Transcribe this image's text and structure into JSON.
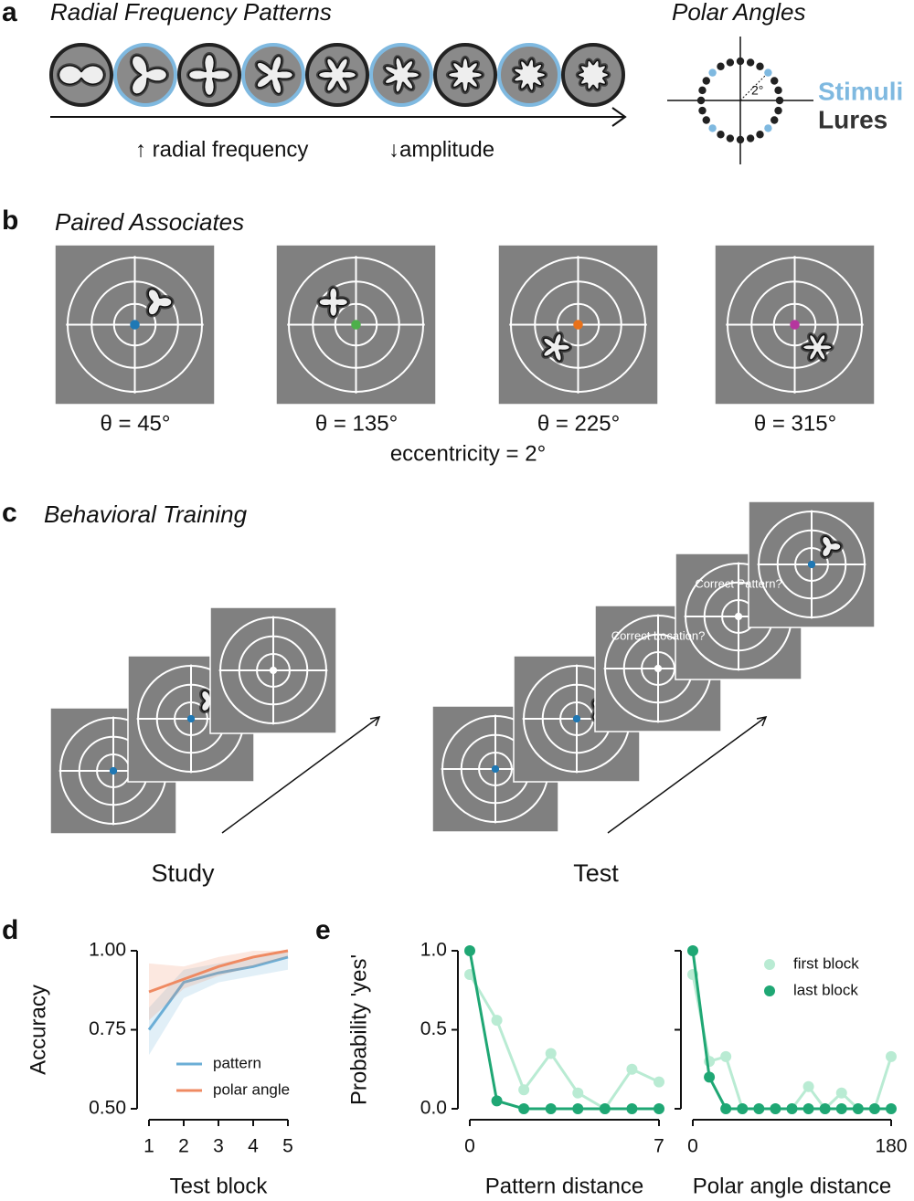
{
  "panel_labels": [
    "a",
    "b",
    "c",
    "d",
    "e"
  ],
  "a": {
    "title": "Radial Frequency Patterns",
    "axis_labels": [
      "↑ radial frequency",
      "↓amplitude"
    ],
    "polar_title": "Polar Angles",
    "polar_scale": "2°",
    "legend": [
      "Stimuli",
      "Lures"
    ]
  },
  "b": {
    "title": "Paired Associates",
    "labels": [
      "θ = 45°",
      "θ = 135°",
      "θ = 225°",
      "θ = 315°"
    ],
    "caption": "eccentricity = 2°"
  },
  "c": {
    "title": "Behavioral Training",
    "prompts": [
      "Correct Location?",
      "Correct Pattern?"
    ],
    "phases": [
      "Study",
      "Test"
    ]
  },
  "chart_data": [
    {
      "type": "line",
      "xlabel": "Test block",
      "ylabel": "Accuracy",
      "x": [
        1,
        2,
        3,
        4,
        5
      ],
      "xlim": [
        1,
        5
      ],
      "xticks": [
        1,
        2,
        3,
        4,
        5
      ],
      "ylim": [
        0.5,
        1.0
      ],
      "yticks": [
        {
          "value": 0.5,
          "label": "0.50"
        },
        {
          "value": 0.75,
          "label": "0.75"
        },
        {
          "value": 1.0,
          "label": "1.00"
        }
      ],
      "legend": "lower right",
      "series": [
        {
          "name": "pattern",
          "color": "#6baed6",
          "values": [
            0.75,
            0.9,
            0.93,
            0.95,
            0.98
          ],
          "lower": [
            0.67,
            0.85,
            0.9,
            0.92,
            0.94
          ],
          "upper": [
            0.82,
            0.94,
            0.96,
            0.98,
            1.0
          ]
        },
        {
          "name": "polar angle",
          "color": "#ef8a62",
          "values": [
            0.87,
            0.91,
            0.95,
            0.98,
            1.0
          ],
          "lower": [
            0.78,
            0.88,
            0.92,
            0.95,
            0.98
          ],
          "upper": [
            0.96,
            0.95,
            0.98,
            1.0,
            1.0
          ]
        }
      ]
    },
    {
      "type": "line",
      "xlabel": "Pattern distance",
      "ylabel": "Probability 'yes'",
      "x": [
        0,
        1,
        2,
        3,
        4,
        5,
        6,
        7
      ],
      "xlim": [
        0,
        7
      ],
      "xticks": [
        0,
        7
      ],
      "ylim": [
        0,
        1
      ],
      "yticks": [
        {
          "value": 0,
          "label": "0.0"
        },
        {
          "value": 0.5,
          "label": "0.5"
        },
        {
          "value": 1,
          "label": "1.0"
        }
      ],
      "markers": true,
      "series": [
        {
          "name": "first block",
          "color": "#b9ebd3",
          "values": [
            0.85,
            0.56,
            0.12,
            0.35,
            0.1,
            0,
            0.25,
            0.17
          ]
        },
        {
          "name": "last block",
          "color": "#1fa774",
          "values": [
            1.0,
            0.05,
            0,
            0,
            0,
            0,
            0,
            0
          ]
        }
      ]
    },
    {
      "type": "line",
      "xlabel": "Polar angle distance",
      "x": [
        0,
        15,
        30,
        45,
        60,
        75,
        90,
        105,
        120,
        135,
        150,
        165,
        180
      ],
      "xlim": [
        0,
        180
      ],
      "xticks": [
        0,
        180
      ],
      "ylim": [
        0,
        1
      ],
      "yticks": [
        0,
        0.5,
        1
      ],
      "ytick_labels": false,
      "markers": true,
      "legend": "upper right",
      "series": [
        {
          "name": "first block",
          "color": "#b9ebd3",
          "values": [
            0.85,
            0.3,
            0.33,
            0,
            0,
            0,
            0,
            0.14,
            0,
            0.1,
            0,
            0,
            0.33
          ]
        },
        {
          "name": "last block",
          "color": "#1fa774",
          "values": [
            1.0,
            0.2,
            0,
            0,
            0,
            0,
            0,
            0,
            0,
            0,
            0,
            0,
            0
          ]
        }
      ]
    }
  ]
}
